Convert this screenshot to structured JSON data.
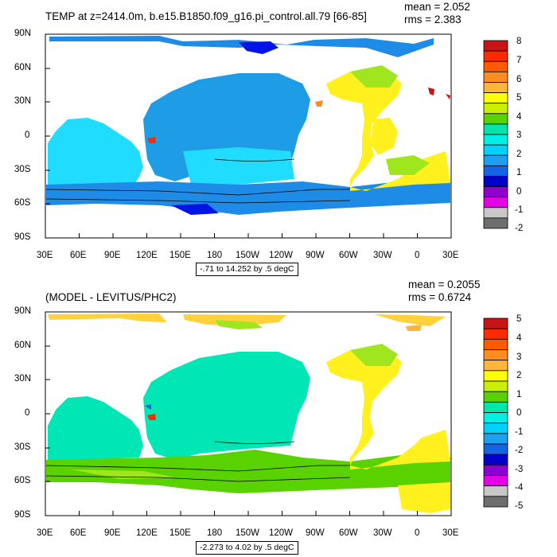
{
  "panels": [
    {
      "id": "top",
      "title": "TEMP at z=2414.0m, b.e15.B1850.f09_g16.pi_control.all.79 [66-85]",
      "mean": "mean = 2.052",
      "rms": "rms = 2.383",
      "range": "-.71 to 14.252 by .5 degC",
      "colorbar_labels": [
        "8",
        "7",
        "6",
        "5",
        "4",
        "3",
        "2",
        "1",
        "0",
        "-1",
        "-2"
      ],
      "colorbar_colors": [
        "#c81414",
        "#ff2a00",
        "#ff5a00",
        "#ff8c1e",
        "#ffb43c",
        "#ffff00",
        "#c8f000",
        "#5ad200",
        "#00e6aa",
        "#00f0e6",
        "#00d2ff",
        "#1ea0f0",
        "#1464e6",
        "#0000c8",
        "#8c00d2",
        "#e600e6",
        "#c8c8c8",
        "#6e6e6e"
      ]
    },
    {
      "id": "bottom",
      "title": "(MODEL - LEVITUS/PHC2)",
      "mean": "mean = 0.2055",
      "rms": "rms = 0.6724",
      "range": "-2.273 to 4.02 by .5 degC",
      "colorbar_labels": [
        "5",
        "4",
        "3",
        "2",
        "1",
        "0",
        "-1",
        "-2",
        "-3",
        "-4",
        "-5"
      ],
      "colorbar_colors": [
        "#c81414",
        "#ff2a00",
        "#ff5a00",
        "#ff8c1e",
        "#ffb43c",
        "#ffff00",
        "#c8f000",
        "#5ad200",
        "#00e6aa",
        "#00f0e6",
        "#00d2ff",
        "#1ea0f0",
        "#1464e6",
        "#0000c8",
        "#8c00d2",
        "#e600e6",
        "#c8c8c8",
        "#6e6e6e"
      ]
    }
  ],
  "lat_labels": [
    "90N",
    "60N",
    "30N",
    "0",
    "30S",
    "60S",
    "90S"
  ],
  "lon_labels": [
    "30E",
    "60E",
    "90E",
    "120E",
    "150E",
    "180",
    "150W",
    "120W",
    "90W",
    "60W",
    "30W",
    "0",
    "30E"
  ]
}
